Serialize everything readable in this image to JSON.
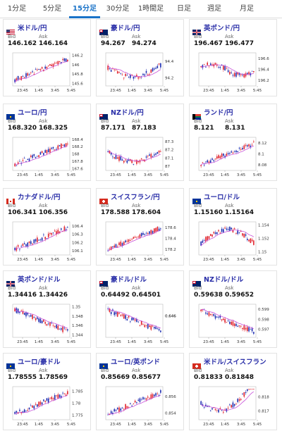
{
  "tabs": [
    {
      "label": "1分足",
      "active": false
    },
    {
      "label": "5分足",
      "active": false
    },
    {
      "label": "15分足",
      "active": true
    },
    {
      "label": "30分足",
      "active": false
    },
    {
      "label": "1時間足",
      "active": false
    },
    {
      "label": "日足",
      "active": false
    },
    {
      "label": "週足",
      "active": false
    },
    {
      "label": "月足",
      "active": false
    }
  ],
  "labels": {
    "bid": "Bid",
    "ask": "Ask"
  },
  "x_ticks": [
    "23:45",
    "1:45",
    "3:45",
    "5:45"
  ],
  "colors": {
    "up": "#e0202a",
    "down": "#1a2ab0",
    "ma": "#c23fd6",
    "pair_text": "#2a2fa8",
    "tab_active": "#1a73c8"
  },
  "cards": [
    {
      "pair": "米ドル/円",
      "flag": "us",
      "bid": "146.162",
      "ask": "146.164",
      "yticks": [
        "146.2",
        "146",
        "145.8",
        "145.6"
      ],
      "ymin": 145.55,
      "ymax": 146.25,
      "trend": "up"
    },
    {
      "pair": "豪ドル/円",
      "flag": "au",
      "bid": "94.267",
      "ask": "94.274",
      "yticks": [
        "94.4",
        "94.2"
      ],
      "ymin": 94.1,
      "ymax": 94.5,
      "trend": "dip"
    },
    {
      "pair": "英ポンド/円",
      "flag": "gb",
      "bid": "196.467",
      "ask": "196.477",
      "yticks": [
        "196.6",
        "196.4",
        "196.2"
      ],
      "ymin": 196.1,
      "ymax": 196.7,
      "trend": "flatdown"
    },
    {
      "pair": "ユーロ/円",
      "flag": "eu",
      "bid": "168.320",
      "ask": "168.325",
      "yticks": [
        "168.4",
        "168.2",
        "168",
        "167.8",
        "167.6"
      ],
      "ymin": 167.55,
      "ymax": 168.45,
      "trend": "up"
    },
    {
      "pair": "NZドル/円",
      "flag": "nz",
      "bid": "87.171",
      "ask": "87.183",
      "yticks": [
        "87.3",
        "87.2",
        "87.1",
        "87"
      ],
      "ymin": 86.95,
      "ymax": 87.35,
      "trend": "dip"
    },
    {
      "pair": "ランド/円",
      "flag": "za",
      "bid": "8.121",
      "ask": "8.131",
      "yticks": [
        "8.12",
        "8.1",
        "8.08"
      ],
      "ymin": 8.07,
      "ymax": 8.13,
      "trend": "up"
    },
    {
      "pair": "カナダドル/円",
      "flag": "ca",
      "bid": "106.341",
      "ask": "106.356",
      "yticks": [
        "106.4",
        "106.3",
        "106.2",
        "106.1"
      ],
      "ymin": 106.05,
      "ymax": 106.45,
      "trend": "up"
    },
    {
      "pair": "スイスフラン/円",
      "flag": "ch",
      "bid": "178.588",
      "ask": "178.604",
      "yticks": [
        "178.6",
        "178.4",
        "178.2"
      ],
      "ymin": 178.1,
      "ymax": 178.7,
      "trend": "up"
    },
    {
      "pair": "ユーロ/ドル",
      "flag": "eu",
      "bid": "1.15160",
      "ask": "1.15164",
      "yticks": [
        "1.154",
        "1.152",
        "1.15"
      ],
      "ymin": 1.1495,
      "ymax": 1.1545,
      "trend": "humpdown"
    },
    {
      "pair": "英ポンド/ドル",
      "flag": "gb",
      "bid": "1.34416",
      "ask": "1.34426",
      "yticks": [
        "1.35",
        "1.348",
        "1.346",
        "1.344"
      ],
      "ymin": 1.3435,
      "ymax": 1.3505,
      "trend": "down"
    },
    {
      "pair": "豪ドル/ドル",
      "flag": "au",
      "bid": "0.64492",
      "ask": "0.64501",
      "yticks": [
        "0.646",
        "0.646"
      ],
      "ymin": 0.6445,
      "ymax": 0.6468,
      "trend": "down"
    },
    {
      "pair": "NZドル/ドル",
      "flag": "nz",
      "bid": "0.59638",
      "ask": "0.59652",
      "yticks": [
        "0.599",
        "0.598",
        "0.597"
      ],
      "ymin": 0.5962,
      "ymax": 0.5995,
      "trend": "down"
    },
    {
      "pair": "ユーロ/豪ドル",
      "flag": "eu",
      "bid": "1.78555",
      "ask": "1.78569",
      "yticks": [
        "1.785",
        "1.78",
        "1.775"
      ],
      "ymin": 1.773,
      "ymax": 1.787,
      "trend": "up"
    },
    {
      "pair": "ユーロ/英ポンド",
      "flag": "eu",
      "bid": "0.85669",
      "ask": "0.85677",
      "yticks": [
        "0.856",
        "0.854"
      ],
      "ymin": 0.8532,
      "ymax": 0.8572,
      "trend": "up"
    },
    {
      "pair": "米ドル/スイスフラン",
      "flag": "ch",
      "bid": "0.81833",
      "ask": "0.81848",
      "yticks": [
        "0.818",
        "0.817"
      ],
      "ymin": 0.8164,
      "ymax": 0.8187,
      "trend": "dipup"
    }
  ]
}
